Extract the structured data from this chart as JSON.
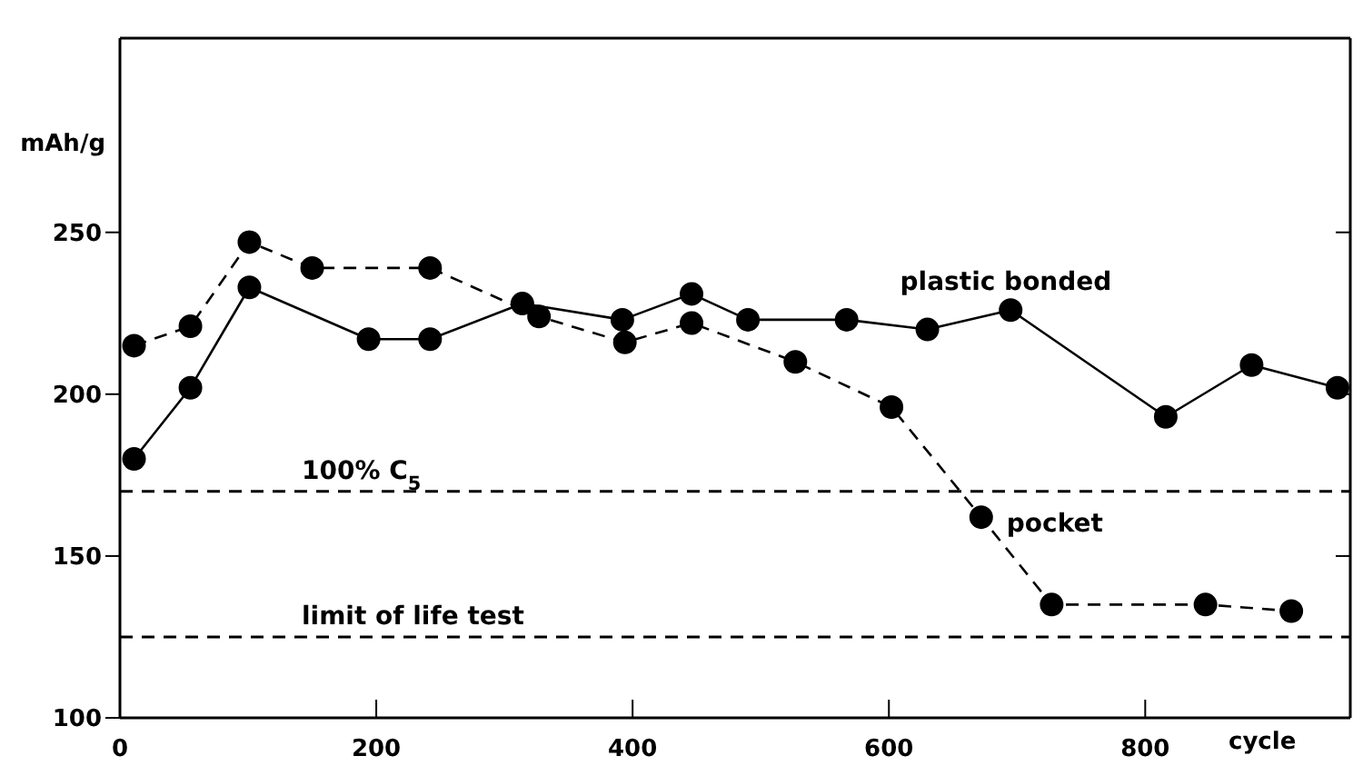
{
  "chart_data": {
    "type": "line",
    "ylabel": "mAh/g",
    "xlabel": "cycle",
    "xlim": [
      0,
      960
    ],
    "xticks": [
      0,
      200,
      400,
      600,
      800
    ],
    "ylim": [
      100,
      310
    ],
    "yticks": [
      100,
      150,
      200,
      250
    ],
    "legend": false,
    "marker": "circle",
    "series": [
      {
        "name": "plastic bonded",
        "color": "#000000",
        "line_style": "solid",
        "x": [
          11,
          55,
          101,
          194,
          242,
          314,
          392,
          446,
          490,
          567,
          630,
          695,
          816,
          883,
          950
        ],
        "values": [
          180,
          202,
          233,
          217,
          217,
          228,
          223,
          231,
          223,
          223,
          220,
          226,
          193,
          209,
          202
        ]
      },
      {
        "name": "pocket",
        "color": "#000000",
        "line_style": "dashed",
        "x": [
          11,
          55,
          101,
          150,
          242,
          327,
          394,
          446,
          527,
          602,
          672,
          727,
          847,
          914
        ],
        "values": [
          215,
          221,
          247,
          239,
          239,
          224,
          216,
          222,
          210,
          196,
          162,
          135,
          135,
          133
        ]
      }
    ],
    "ref_lines": [
      {
        "axis": "y",
        "value": 170,
        "label": "100% C$_{5}$",
        "line_style": "dashed",
        "color": "#000000"
      },
      {
        "axis": "y",
        "value": 125,
        "label": "limit of life test",
        "line_style": "dashed",
        "color": "#000000"
      }
    ]
  }
}
